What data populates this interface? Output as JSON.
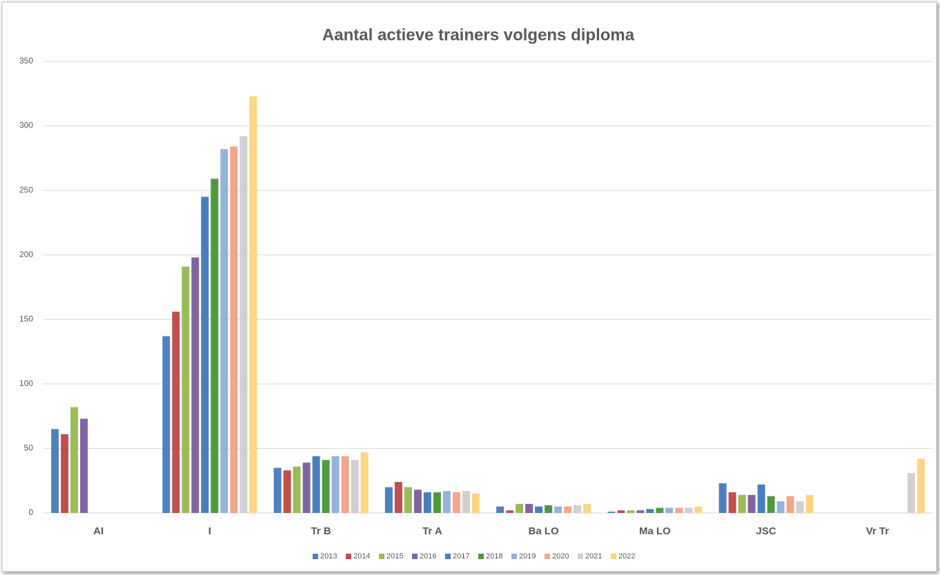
{
  "chart_data": {
    "type": "bar",
    "title": "Aantal actieve trainers volgens diploma",
    "categories": [
      "AI",
      "I",
      "Tr B",
      "Tr A",
      "Ba LO",
      "Ma LO",
      "JSC",
      "Vr Tr"
    ],
    "series": [
      {
        "name": "2013",
        "color": "#4f81bd",
        "values": [
          65,
          137,
          35,
          20,
          5,
          1,
          23,
          0
        ]
      },
      {
        "name": "2014",
        "color": "#c0504d",
        "values": [
          61,
          156,
          33,
          24,
          2,
          2,
          16,
          0
        ]
      },
      {
        "name": "2015",
        "color": "#9bbb59",
        "values": [
          82,
          191,
          36,
          20,
          7,
          2,
          14,
          0
        ]
      },
      {
        "name": "2016",
        "color": "#8064a2",
        "values": [
          73,
          198,
          39,
          18,
          7,
          2,
          14,
          0
        ]
      },
      {
        "name": "2017",
        "color": "#4a7ebb",
        "values": [
          0,
          245,
          44,
          16,
          5,
          3,
          22,
          0
        ]
      },
      {
        "name": "2018",
        "color": "#4f9a3f",
        "values": [
          0,
          259,
          41,
          16,
          6,
          4,
          13,
          0
        ]
      },
      {
        "name": "2019",
        "color": "#95b3d7",
        "values": [
          0,
          282,
          44,
          17,
          5,
          4,
          9,
          0
        ]
      },
      {
        "name": "2020",
        "color": "#f2a68a",
        "values": [
          0,
          284,
          44,
          16,
          5,
          4,
          13,
          0
        ]
      },
      {
        "name": "2021",
        "color": "#d0d0d0",
        "values": [
          0,
          292,
          41,
          17,
          6,
          4,
          9,
          31
        ]
      },
      {
        "name": "2022",
        "color": "#fcd581",
        "values": [
          0,
          323,
          47,
          15,
          7,
          5,
          14,
          42
        ]
      }
    ],
    "ylim": [
      0,
      350
    ],
    "yticks": [
      0,
      50,
      100,
      150,
      200,
      250,
      300,
      350
    ],
    "grid": true,
    "legend": "bottom"
  }
}
